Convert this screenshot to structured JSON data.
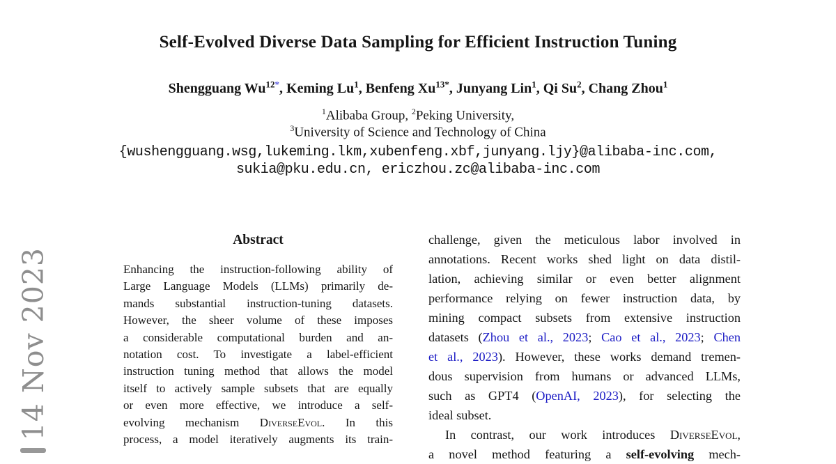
{
  "sidebar": {
    "date": "14 Nov 2023"
  },
  "colors": {
    "citation_blue": "#1b1bc4",
    "footnote_star_blue": "#5b5be0",
    "watermark_gray": "#8e8e8e"
  },
  "header": {
    "title": "Self-Evolved Diverse Data Sampling for Efficient Instruction Tuning",
    "authors": [
      {
        "name": "Shengguang Wu",
        "sup": "12",
        "star": "*",
        "sep": ", "
      },
      {
        "name": "Keming Lu",
        "sup": "1",
        "star": "",
        "sep": ", "
      },
      {
        "name": "Benfeng Xu",
        "sup": "13*",
        "star": "",
        "sep": ", "
      },
      {
        "name": "Junyang Lin",
        "sup": "1",
        "star": "",
        "sep": ", "
      },
      {
        "name": "Qi Su",
        "sup": "2",
        "star": "",
        "sep": ", "
      },
      {
        "name": "Chang Zhou",
        "sup": "1",
        "star": "",
        "sep": ""
      }
    ],
    "affiliations": {
      "line1": [
        {
          "sup": "1",
          "text": "Alibaba Group, "
        },
        {
          "sup": "2",
          "text": "Peking University,"
        }
      ],
      "line2": [
        {
          "sup": "3",
          "text": "University of Science and Technology of China"
        }
      ]
    },
    "emails": {
      "line1": "{wushengguang.wsg,lukeming.lkm,xubenfeng.xbf,junyang.ljy}@alibaba-inc.com,",
      "line2": "sukia@pku.edu.cn, ericzhou.zc@alibaba-inc.com"
    }
  },
  "abstract": {
    "heading": "Abstract",
    "line1": "Enhancing the instruction-following ability of",
    "line2": "Large Language Models (LLMs) primarily de-",
    "line3": "mands substantial instruction-tuning datasets.",
    "line4": "However, the sheer volume of these imposes",
    "line5": "a considerable computational burden and an-",
    "line6": "notation cost. To investigate a label-efficient",
    "line7": "instruction tuning method that allows the model",
    "line8": "itself to actively sample subsets that are equally",
    "line9": "or even more effective, we introduce a self-",
    "line10": {
      "pre": "evolving mechanism ",
      "smallcaps": "DiverseEvol",
      "post": ". In this"
    },
    "line11": "process, a model iteratively augments its train-"
  },
  "intro": {
    "line1": "challenge, given the meticulous labor involved in",
    "line2": "annotations. Recent works shed light on data distil-",
    "line3": "lation, achieving similar or even better alignment",
    "line4": "performance relying on fewer instruction data, by",
    "line5": "mining compact subsets from extensive instruction",
    "line6": {
      "t0": "datasets (",
      "c1": "Zhou et al., 2023",
      "t1": "; ",
      "c2": "Cao et al., 2023",
      "t2": "; ",
      "c3": "Chen"
    },
    "line7": {
      "c0": "et al., 2023",
      "t0": "). However, these works demand tremen-"
    },
    "line8": "dous supervision from humans or advanced LLMs,",
    "line9": {
      "t0": "such as GPT4 (",
      "c0": "OpenAI, 2023",
      "t1": "), for selecting the"
    },
    "line10": "ideal subset.",
    "line11": {
      "t0": "In contrast, our work introduces ",
      "smallcaps": "DiverseEvol",
      "t1": ","
    },
    "line12": {
      "t0": "a novel method featuring a ",
      "b0": "self-evolving",
      "t1": " mech-"
    }
  }
}
